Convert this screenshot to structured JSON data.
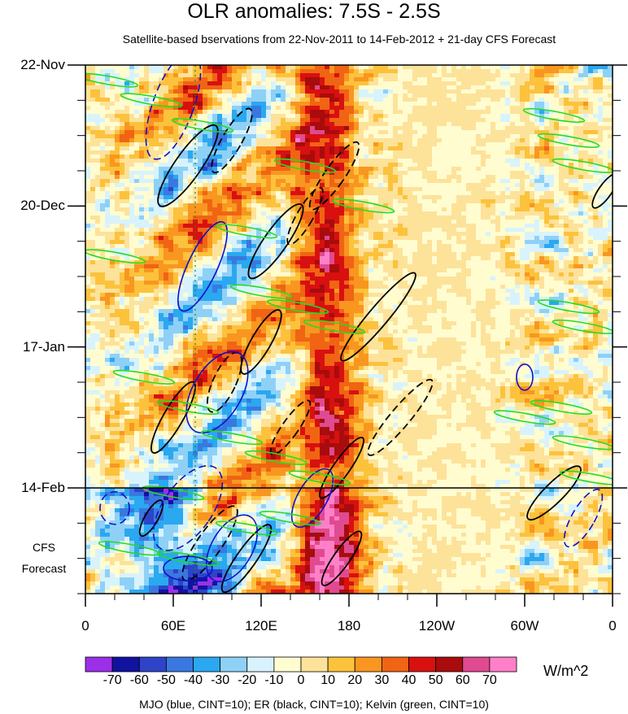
{
  "title": "OLR anomalies: 7.5S - 2.5S",
  "subtitle": "Satellite-based bservations from 22-Nov-2011 to 14-Feb-2012 + 21-day CFS Forecast",
  "forecast_label_line1": "CFS",
  "forecast_label_line2": "Forecast",
  "units": "W/m^2",
  "footnote": "MJO (blue, CINT=10); ER (black, CINT=10); Kelvin (green, CINT=10)",
  "colors": {
    "contour_mjo": "#1010c8",
    "contour_er": "#000000",
    "contour_kelvin": "#22dd22",
    "background": "#ffffff"
  },
  "chart_data": {
    "type": "heatmap",
    "title": "OLR anomalies: 7.5S - 2.5S",
    "subtitle": "Satellite-based bservations from 22-Nov-2011 to 14-Feb-2012 + 21-day CFS Forecast",
    "x_axis": {
      "ticks": [
        "0",
        "60E",
        "120E",
        "180",
        "120W",
        "60W",
        "0"
      ],
      "tick_longitudes": [
        0,
        60,
        120,
        180,
        240,
        300,
        360
      ],
      "range": [
        0,
        360
      ]
    },
    "y_axis": {
      "ticks": [
        "22-Nov",
        "20-Dec",
        "17-Jan",
        "14-Feb"
      ],
      "tick_days": [
        0,
        28,
        56,
        84
      ],
      "range_days": [
        0,
        105
      ],
      "reversed": true,
      "forecast_start_day": 84
    },
    "colorbar": {
      "labels": [
        "-70",
        "-60",
        "-50",
        "-40",
        "-30",
        "-20",
        "-10",
        "0",
        "10",
        "20",
        "30",
        "40",
        "50",
        "60",
        "70"
      ],
      "colors": [
        "#9b30e8",
        "#1212a0",
        "#2d44c8",
        "#3a78e0",
        "#2aa8f0",
        "#8fd0f6",
        "#d8f3fd",
        "#fffcd0",
        "#fde29a",
        "#fcc23c",
        "#f99620",
        "#f06414",
        "#d81010",
        "#a80c0c",
        "#e04a90",
        "#ff80c8"
      ],
      "units": "W/m^2"
    },
    "grid": false,
    "contours": [
      "MJO (blue, CINT=10)",
      "ER (black, CINT=10)",
      "Kelvin (green, CINT=10)"
    ]
  }
}
